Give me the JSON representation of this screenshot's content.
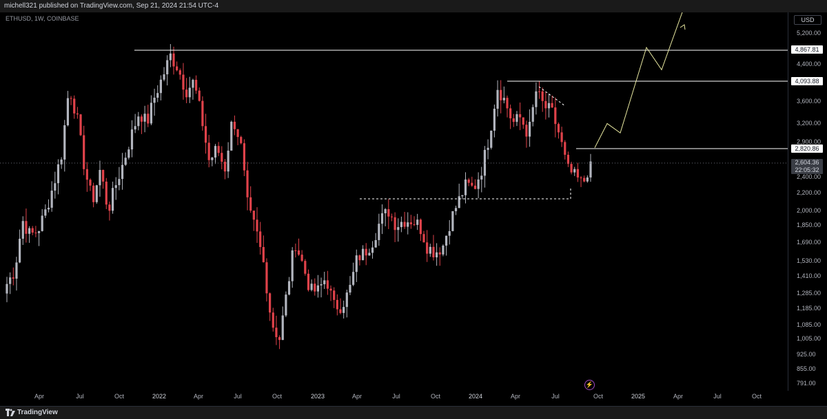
{
  "publisher": {
    "text": "michell321 published on TradingView.com, Sep 21, 2024 21:54 UTC-4"
  },
  "symbol": {
    "text": "ETHUSD, 1W, COINBASE"
  },
  "currency": "USD",
  "price_axis": {
    "labels": [
      "5,200.00",
      "4,400.00",
      "3,600.00",
      "3,200.00",
      "2,900.00",
      "2,400.00",
      "2,200.00",
      "2,000.00",
      "1,850.00",
      "1,690.00",
      "1,530.00",
      "1,410.00",
      "1,285.00",
      "1,185.00",
      "1,085.00",
      "1,005.00",
      "925.00",
      "855.00",
      "791.00"
    ]
  },
  "level_tags": {
    "ath": "4,867.81",
    "high_2024": "4,093.88",
    "resistance": "2,820.86"
  },
  "current_price": {
    "value": "2,604.36",
    "countdown": "22:05:32"
  },
  "time_axis": {
    "labels": [
      {
        "text": "Apr",
        "major": false
      },
      {
        "text": "Jul",
        "major": false
      },
      {
        "text": "Oct",
        "major": false
      },
      {
        "text": "2022",
        "major": true
      },
      {
        "text": "Apr",
        "major": false
      },
      {
        "text": "Jul",
        "major": false
      },
      {
        "text": "Oct",
        "major": false
      },
      {
        "text": "2023",
        "major": true
      },
      {
        "text": "Apr",
        "major": false
      },
      {
        "text": "Jul",
        "major": false
      },
      {
        "text": "Oct",
        "major": false
      },
      {
        "text": "2024",
        "major": true
      },
      {
        "text": "Apr",
        "major": false
      },
      {
        "text": "Jul",
        "major": false
      },
      {
        "text": "Oct",
        "major": false
      },
      {
        "text": "2025",
        "major": true
      },
      {
        "text": "Apr",
        "major": false
      },
      {
        "text": "Jul",
        "major": false
      },
      {
        "text": "Oct",
        "major": false
      }
    ]
  },
  "footer": {
    "brand": "TradingView"
  },
  "icons": {
    "logo": "tradingview-logo-icon",
    "bolt": "lightning-icon"
  },
  "colors": {
    "background": "#000000",
    "up_candle": "#b2b5be",
    "down_candle": "#e0424a",
    "drawing": "#ffffff",
    "projection": "#e8e8a0"
  },
  "chart_data": {
    "type": "candlestick",
    "symbol": "ETHUSD",
    "interval": "1W",
    "scale": "log",
    "ylim": [
      760,
      5800
    ],
    "horizontal_levels": [
      4867.81,
      4093.88,
      2820.86
    ],
    "support_zone": [
      2150,
      2150
    ],
    "current_price": 2604.36,
    "close_path": [
      1350,
      1450,
      1900,
      1750,
      1800,
      2000,
      2300,
      2700,
      3900,
      3300,
      2500,
      2100,
      2500,
      2000,
      2300,
      2600,
      3000,
      3400,
      3200,
      3700,
      4100,
      4600,
      4300,
      3800,
      4000,
      3300,
      2600,
      2800,
      2500,
      3300,
      2900,
      2000,
      1800,
      1500,
      1100,
      1000,
      1300,
      1700,
      1500,
      1300,
      1300,
      1400,
      1200,
      1200,
      1300,
      1550,
      1600,
      1700,
      1900,
      2000,
      1850,
      1900,
      1900,
      1850,
      1650,
      1600,
      1650,
      1900,
      2100,
      2300,
      2250,
      2500,
      3000,
      3900,
      3600,
      3200,
      3300,
      3000,
      3800,
      3500,
      3400,
      3000,
      2500,
      2400,
      2300,
      2604
    ],
    "projection_path": [
      2604,
      3100,
      2820,
      4300,
      3900,
      5600
    ]
  }
}
